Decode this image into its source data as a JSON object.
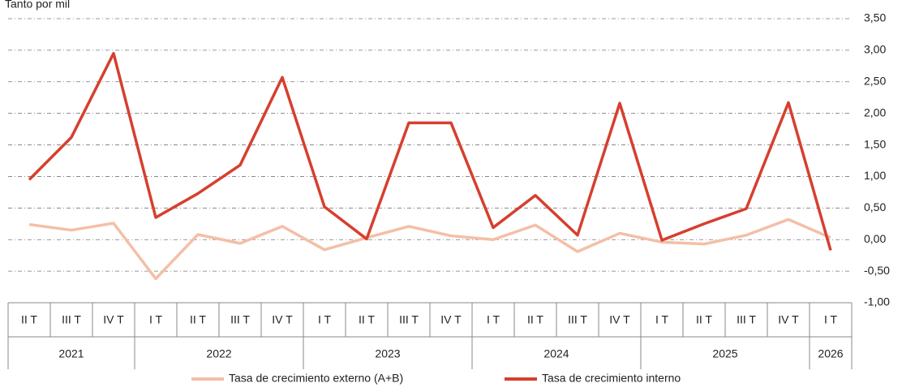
{
  "chart_data": {
    "type": "line",
    "y_axis_label": "Tanto por mil",
    "groups": [
      {
        "label": "2021",
        "categories": [
          "II T",
          "III T",
          "IV T"
        ]
      },
      {
        "label": "2022",
        "categories": [
          "I T",
          "II T",
          "III T",
          "IV T"
        ]
      },
      {
        "label": "2023",
        "categories": [
          "I T",
          "II T",
          "III T",
          "IV T"
        ]
      },
      {
        "label": "2024",
        "categories": [
          "I T",
          "II T",
          "III T",
          "IV T"
        ]
      },
      {
        "label": "2025",
        "categories": [
          "I T",
          "II T",
          "III T",
          "IV T"
        ]
      },
      {
        "label": "2026",
        "categories": [
          "I T"
        ]
      }
    ],
    "series": [
      {
        "name": "Tasa de crecimiento externo (A+B)",
        "color": "#f4bfa6",
        "values": [
          0.24,
          0.15,
          0.26,
          -0.62,
          0.08,
          -0.06,
          0.21,
          -0.16,
          0.03,
          0.21,
          0.06,
          0.0,
          0.23,
          -0.19,
          0.1,
          -0.04,
          -0.07,
          0.07,
          0.32,
          0.03
        ]
      },
      {
        "name": "Tasa de crecimiento interno",
        "color": "#d63f2e",
        "values": [
          0.95,
          1.62,
          2.95,
          0.35,
          0.73,
          1.18,
          2.57,
          0.52,
          0.01,
          1.85,
          1.85,
          0.19,
          0.7,
          0.07,
          2.16,
          -0.01,
          0.25,
          0.49,
          2.17,
          -0.17
        ]
      }
    ],
    "ylim": [
      -1,
      3.5
    ],
    "yticks": [
      {
        "value": -1,
        "label": "-1,00"
      },
      {
        "value": -0.5,
        "label": "-0,50"
      },
      {
        "value": 0,
        "label": "0,00"
      },
      {
        "value": 0.5,
        "label": "0,50"
      },
      {
        "value": 1,
        "label": "1,00"
      },
      {
        "value": 1.5,
        "label": "1,50"
      },
      {
        "value": 2,
        "label": "2,00"
      },
      {
        "value": 2.5,
        "label": "2,50"
      },
      {
        "value": 3,
        "label": "3,00"
      },
      {
        "value": 3.5,
        "label": "3,50"
      }
    ],
    "grid": true,
    "legend": "bottom"
  }
}
